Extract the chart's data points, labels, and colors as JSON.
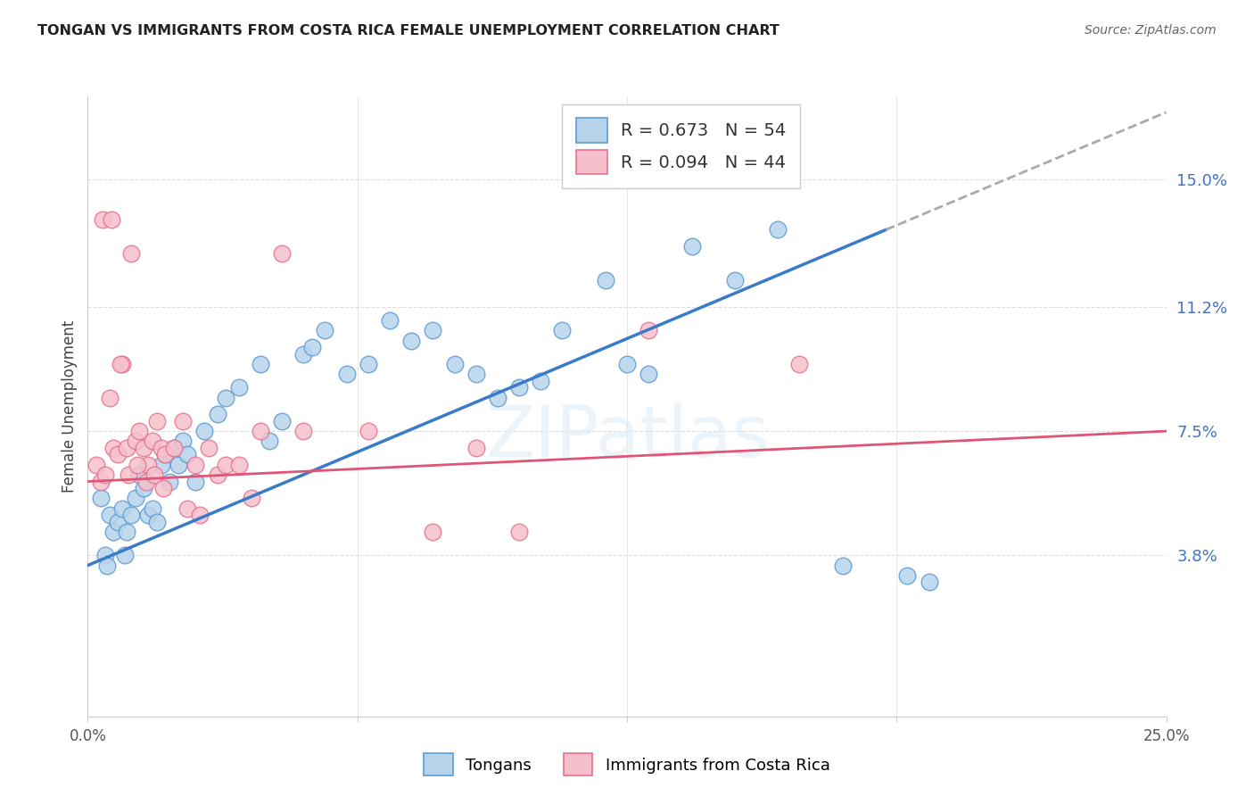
{
  "title": "TONGAN VS IMMIGRANTS FROM COSTA RICA FEMALE UNEMPLOYMENT CORRELATION CHART",
  "source": "Source: ZipAtlas.com",
  "ylabel": "Female Unemployment",
  "ytick_labels": [
    "3.8%",
    "7.5%",
    "11.2%",
    "15.0%"
  ],
  "ytick_values": [
    3.8,
    7.5,
    11.2,
    15.0
  ],
  "xlim": [
    0.0,
    25.0
  ],
  "ylim": [
    -1.0,
    17.5
  ],
  "legend_entry_1": "R = 0.673   N = 54",
  "legend_entry_2": "R = 0.094   N = 44",
  "bottom_legend": [
    "Tongans",
    "Immigrants from Costa Rica"
  ],
  "blue_dot_face": "#b8d4ea",
  "blue_dot_edge": "#5b9bd5",
  "pink_dot_face": "#f5c0cc",
  "pink_dot_edge": "#e87090",
  "blue_line_color": "#3a7bc8",
  "pink_line_color": "#e05575",
  "dashed_color": "#aaaaaa",
  "background_color": "#ffffff",
  "grid_color": "#dddddd",
  "yaxis_label_color": "#4472c4",
  "blue_line_x0": 0.0,
  "blue_line_y0": 3.5,
  "blue_line_x1": 18.5,
  "blue_line_y1": 13.5,
  "blue_dash_x0": 18.5,
  "blue_dash_y0": 13.5,
  "blue_dash_x1": 25.0,
  "blue_dash_y1": 17.0,
  "pink_line_x0": 0.0,
  "pink_line_y0": 6.0,
  "pink_line_x1": 25.0,
  "pink_line_y1": 7.5,
  "tongans_x": [
    0.3,
    0.4,
    0.5,
    0.6,
    0.7,
    0.8,
    0.9,
    1.0,
    1.1,
    1.2,
    1.3,
    1.4,
    1.5,
    1.6,
    1.7,
    1.8,
    1.9,
    2.0,
    2.1,
    2.2,
    2.3,
    2.5,
    2.7,
    3.0,
    3.2,
    3.5,
    4.0,
    4.2,
    4.5,
    5.0,
    5.2,
    5.5,
    6.0,
    6.5,
    7.0,
    7.5,
    8.0,
    8.5,
    9.0,
    9.5,
    10.0,
    10.5,
    11.0,
    12.0,
    12.5,
    13.0,
    14.0,
    15.0,
    16.0,
    17.5,
    19.0,
    19.5,
    0.45,
    0.85
  ],
  "tongans_y": [
    5.5,
    3.8,
    5.0,
    4.5,
    4.8,
    5.2,
    4.5,
    5.0,
    5.5,
    6.2,
    5.8,
    5.0,
    5.2,
    4.8,
    6.5,
    6.8,
    6.0,
    7.0,
    6.5,
    7.2,
    6.8,
    6.0,
    7.5,
    8.0,
    8.5,
    8.8,
    9.5,
    7.2,
    7.8,
    9.8,
    10.0,
    10.5,
    9.2,
    9.5,
    10.8,
    10.2,
    10.5,
    9.5,
    9.2,
    8.5,
    8.8,
    9.0,
    10.5,
    12.0,
    9.5,
    9.2,
    13.0,
    12.0,
    13.5,
    3.5,
    3.2,
    3.0,
    3.5,
    3.8
  ],
  "costa_rica_x": [
    0.2,
    0.3,
    0.4,
    0.5,
    0.6,
    0.7,
    0.8,
    0.9,
    1.0,
    1.1,
    1.2,
    1.3,
    1.4,
    1.5,
    1.6,
    1.7,
    1.8,
    2.0,
    2.2,
    2.5,
    2.8,
    3.0,
    3.2,
    3.5,
    3.8,
    4.0,
    4.5,
    5.0,
    6.5,
    8.0,
    9.0,
    10.0,
    13.0,
    16.5,
    0.35,
    0.55,
    0.75,
    0.95,
    1.15,
    1.35,
    1.55,
    1.75,
    2.3,
    2.6
  ],
  "costa_rica_y": [
    6.5,
    6.0,
    6.2,
    8.5,
    7.0,
    6.8,
    9.5,
    7.0,
    12.8,
    7.2,
    7.5,
    7.0,
    6.5,
    7.2,
    7.8,
    7.0,
    6.8,
    7.0,
    7.8,
    6.5,
    7.0,
    6.2,
    6.5,
    6.5,
    5.5,
    7.5,
    12.8,
    7.5,
    7.5,
    4.5,
    7.0,
    4.5,
    10.5,
    9.5,
    13.8,
    13.8,
    9.5,
    6.2,
    6.5,
    6.0,
    6.2,
    5.8,
    5.2,
    5.0
  ]
}
